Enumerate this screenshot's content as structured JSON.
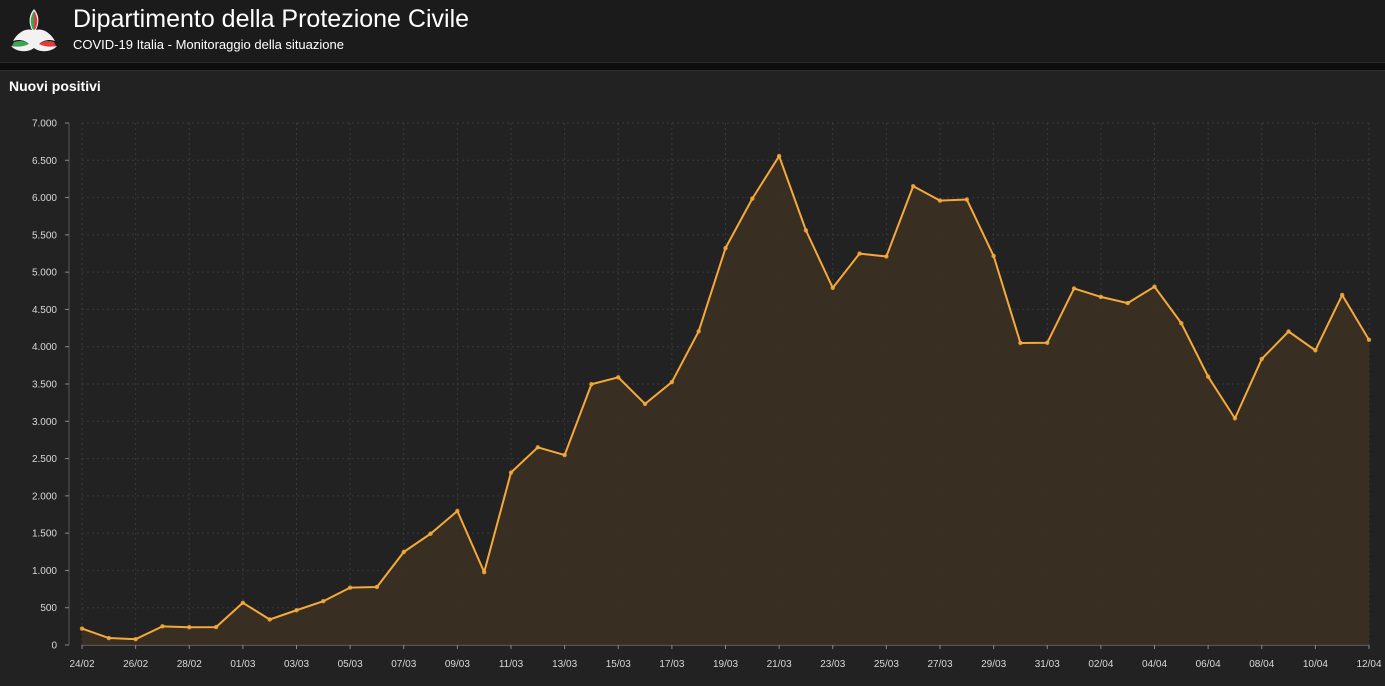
{
  "header": {
    "title": "Dipartimento della Protezione Civile",
    "subtitle": "COVID-19 Italia - Monitoraggio della situazione",
    "logo_icon": "civil-protection-logo-icon"
  },
  "panel": {
    "title": "Nuovi positivi"
  },
  "colors": {
    "line": "#f5a93a",
    "area": "#3b3022",
    "background": "#222222",
    "grid": "#3a3a3a",
    "text": "#d8d8d8"
  },
  "chart_data": {
    "type": "area",
    "title": "Nuovi positivi",
    "xlabel": "",
    "ylabel": "",
    "ylim": [
      0,
      7000
    ],
    "grid": true,
    "y_ticks": [
      {
        "value": 0,
        "label": "0"
      },
      {
        "value": 500,
        "label": "500"
      },
      {
        "value": 1000,
        "label": "1.000"
      },
      {
        "value": 1500,
        "label": "1.500"
      },
      {
        "value": 2000,
        "label": "2.000"
      },
      {
        "value": 2500,
        "label": "2.500"
      },
      {
        "value": 3000,
        "label": "3.000"
      },
      {
        "value": 3500,
        "label": "3.500"
      },
      {
        "value": 4000,
        "label": "4.000"
      },
      {
        "value": 4500,
        "label": "4.500"
      },
      {
        "value": 5000,
        "label": "5.000"
      },
      {
        "value": 5500,
        "label": "5.500"
      },
      {
        "value": 6000,
        "label": "6.000"
      },
      {
        "value": 6500,
        "label": "6.500"
      },
      {
        "value": 7000,
        "label": "7.000"
      }
    ],
    "x_tick_labels": [
      "24/02",
      "26/02",
      "28/02",
      "01/03",
      "03/03",
      "05/03",
      "07/03",
      "09/03",
      "11/03",
      "13/03",
      "15/03",
      "17/03",
      "19/03",
      "21/03",
      "23/03",
      "25/03",
      "27/03",
      "29/03",
      "31/03",
      "02/04",
      "04/04",
      "06/04",
      "08/04",
      "10/04",
      "12/04"
    ],
    "categories": [
      "24/02",
      "25/02",
      "26/02",
      "27/02",
      "28/02",
      "29/02",
      "01/03",
      "02/03",
      "03/03",
      "04/03",
      "05/03",
      "06/03",
      "07/03",
      "08/03",
      "09/03",
      "10/03",
      "11/03",
      "12/03",
      "13/03",
      "14/03",
      "15/03",
      "16/03",
      "17/03",
      "18/03",
      "19/03",
      "20/03",
      "21/03",
      "22/03",
      "23/03",
      "24/03",
      "25/03",
      "26/03",
      "27/03",
      "28/03",
      "29/03",
      "30/03",
      "31/03",
      "01/04",
      "02/04",
      "03/04",
      "04/04",
      "05/04",
      "06/04",
      "07/04",
      "08/04",
      "09/04",
      "10/04",
      "11/04",
      "12/04"
    ],
    "series": [
      {
        "values": [
          221,
          93,
          78,
          250,
          238,
          240,
          566,
          342,
          466,
          587,
          769,
          778,
          1247,
          1492,
          1797,
          977,
          2313,
          2651,
          2547,
          3497,
          3590,
          3233,
          3526,
          4207,
          5322,
          5986,
          6557,
          5560,
          4789,
          5249,
          5210,
          6153,
          5959,
          5974,
          5217,
          4050,
          4053,
          4782,
          4668,
          4585,
          4805,
          4316,
          3599,
          3039,
          3836,
          4204,
          3951,
          4694,
          4092
        ]
      }
    ]
  }
}
